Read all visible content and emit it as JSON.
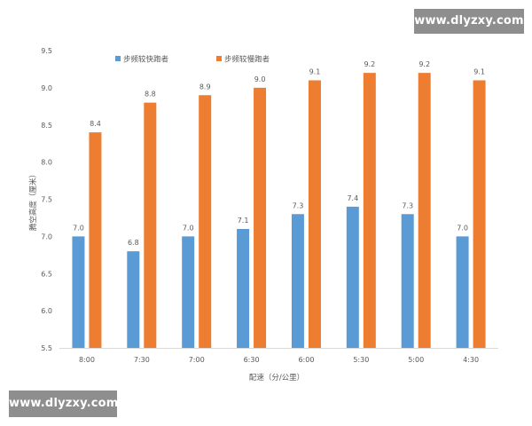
{
  "watermarks": {
    "top": "www.dlyzxy.com",
    "bottom": "www.dlyzxy.com"
  },
  "chart_data": {
    "type": "bar",
    "title": "",
    "xlabel": "配速（分/公里）",
    "ylabel": "腾空高度（厘米）",
    "categories": [
      "8:00",
      "7:30",
      "7:00",
      "6:30",
      "6:00",
      "5:30",
      "5:00",
      "4:30"
    ],
    "series": [
      {
        "name": "步频较快跑者",
        "color": "#5b9bd5",
        "values": [
          7.0,
          6.8,
          7.0,
          7.1,
          7.3,
          7.4,
          7.3,
          7.0
        ],
        "labels": [
          "7.0",
          "6.8",
          "7.0",
          "7.1",
          "7.3",
          "7.4",
          "7.3",
          "7.0"
        ]
      },
      {
        "name": "步频较慢跑者",
        "color": "#ed7d31",
        "values": [
          8.4,
          8.8,
          8.9,
          9.0,
          9.1,
          9.2,
          9.2,
          9.1
        ],
        "labels": [
          "8.4",
          "8.8",
          "8.9",
          "9.0",
          "9.1",
          "9.2",
          "9.2",
          "9.1"
        ]
      }
    ],
    "ylim": [
      5.5,
      9.5
    ],
    "yticks": [
      5.5,
      6.0,
      6.5,
      7.0,
      7.5,
      8.0,
      8.5,
      9.0,
      9.5
    ],
    "ytick_labels": [
      "5.5",
      "6.0",
      "6.5",
      "7.0",
      "7.5",
      "8.0",
      "8.5",
      "9.0",
      "9.5"
    ],
    "grid": false,
    "legend_position": "top-left"
  }
}
